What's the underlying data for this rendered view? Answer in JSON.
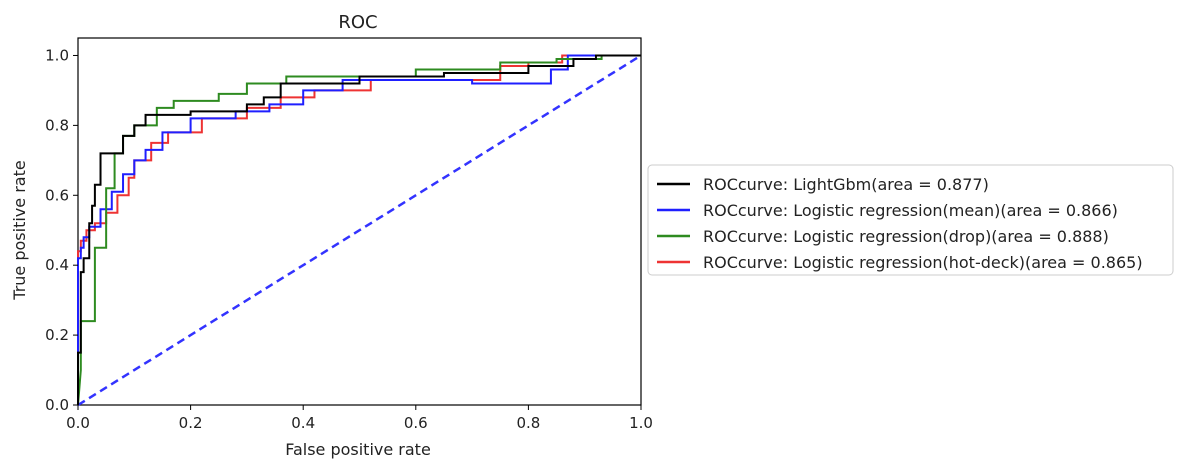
{
  "chart_data": {
    "type": "line",
    "title": "ROC",
    "xlabel": "False positive rate",
    "ylabel": "True positive rate",
    "xlim": [
      0,
      1
    ],
    "ylim": [
      0,
      1.05
    ],
    "x_ticks": [
      0.0,
      0.2,
      0.4,
      0.6,
      0.8,
      1.0
    ],
    "y_ticks": [
      0.0,
      0.2,
      0.4,
      0.6,
      0.8,
      1.0
    ],
    "grid": false,
    "legend_position": "right-outside",
    "series": [
      {
        "name": "ROCcurve: LightGbm(area = 0.877)",
        "color": "#000000",
        "style": "solid",
        "x": [
          0,
          0,
          0.005,
          0.005,
          0.01,
          0.01,
          0.02,
          0.02,
          0.025,
          0.025,
          0.03,
          0.03,
          0.04,
          0.04,
          0.08,
          0.08,
          0.1,
          0.1,
          0.12,
          0.12,
          0.2,
          0.2,
          0.3,
          0.3,
          0.33,
          0.33,
          0.36,
          0.36,
          0.5,
          0.5,
          0.65,
          0.65,
          0.8,
          0.8,
          0.88,
          0.88,
          0.92,
          0.92,
          1.0
        ],
        "y": [
          0,
          0.15,
          0.15,
          0.38,
          0.38,
          0.42,
          0.42,
          0.52,
          0.52,
          0.57,
          0.57,
          0.63,
          0.63,
          0.72,
          0.72,
          0.77,
          0.77,
          0.8,
          0.8,
          0.83,
          0.83,
          0.84,
          0.84,
          0.86,
          0.86,
          0.88,
          0.88,
          0.92,
          0.92,
          0.94,
          0.94,
          0.95,
          0.95,
          0.97,
          0.97,
          0.99,
          0.99,
          1.0,
          1.0
        ]
      },
      {
        "name": "ROCcurve: Logistic regression(mean)(area = 0.866)",
        "color": "#1f1fff",
        "style": "solid",
        "x": [
          0,
          0,
          0.005,
          0.005,
          0.01,
          0.01,
          0.02,
          0.02,
          0.04,
          0.04,
          0.06,
          0.06,
          0.08,
          0.08,
          0.1,
          0.1,
          0.12,
          0.12,
          0.15,
          0.15,
          0.2,
          0.2,
          0.28,
          0.28,
          0.34,
          0.34,
          0.4,
          0.4,
          0.47,
          0.47,
          0.7,
          0.7,
          0.84,
          0.84,
          0.87,
          0.87,
          1.0
        ],
        "y": [
          0,
          0.42,
          0.42,
          0.45,
          0.45,
          0.48,
          0.48,
          0.51,
          0.51,
          0.56,
          0.56,
          0.61,
          0.61,
          0.66,
          0.66,
          0.7,
          0.7,
          0.73,
          0.73,
          0.78,
          0.78,
          0.82,
          0.82,
          0.84,
          0.84,
          0.86,
          0.86,
          0.9,
          0.9,
          0.93,
          0.93,
          0.92,
          0.92,
          0.96,
          0.96,
          1.0,
          1.0
        ]
      },
      {
        "name": "ROCcurve: Logistic regression(drop)(area = 0.888)",
        "color": "#2e8b20",
        "style": "solid",
        "x": [
          0,
          0.005,
          0.005,
          0.01,
          0.01,
          0.03,
          0.03,
          0.05,
          0.05,
          0.065,
          0.065,
          0.08,
          0.08,
          0.1,
          0.1,
          0.14,
          0.14,
          0.17,
          0.17,
          0.25,
          0.25,
          0.3,
          0.3,
          0.37,
          0.37,
          0.6,
          0.6,
          0.75,
          0.75,
          0.85,
          0.85,
          0.93,
          0.93,
          1.0
        ],
        "y": [
          0,
          0.1,
          0.24,
          0.24,
          0.24,
          0.24,
          0.45,
          0.45,
          0.62,
          0.62,
          0.72,
          0.72,
          0.77,
          0.77,
          0.8,
          0.8,
          0.85,
          0.85,
          0.87,
          0.87,
          0.89,
          0.89,
          0.92,
          0.92,
          0.94,
          0.94,
          0.96,
          0.96,
          0.98,
          0.98,
          0.99,
          0.99,
          1.0,
          1.0
        ]
      },
      {
        "name": "ROCcurve: Logistic regression(hot-deck)(area = 0.865)",
        "color": "#ee3333",
        "style": "solid",
        "x": [
          0,
          0,
          0.005,
          0.005,
          0.015,
          0.015,
          0.03,
          0.03,
          0.05,
          0.05,
          0.07,
          0.07,
          0.09,
          0.09,
          0.1,
          0.1,
          0.13,
          0.13,
          0.16,
          0.16,
          0.22,
          0.22,
          0.3,
          0.3,
          0.36,
          0.36,
          0.42,
          0.42,
          0.52,
          0.52,
          0.75,
          0.75,
          0.8,
          0.8,
          0.86,
          0.86,
          1.0
        ],
        "y": [
          0,
          0.44,
          0.44,
          0.47,
          0.47,
          0.5,
          0.5,
          0.52,
          0.52,
          0.55,
          0.55,
          0.6,
          0.6,
          0.65,
          0.65,
          0.7,
          0.7,
          0.75,
          0.75,
          0.78,
          0.78,
          0.82,
          0.82,
          0.85,
          0.85,
          0.88,
          0.88,
          0.9,
          0.9,
          0.93,
          0.93,
          0.97,
          0.97,
          0.98,
          0.98,
          1.0,
          1.0
        ]
      }
    ],
    "reference_line": {
      "x": [
        0,
        1
      ],
      "y": [
        0,
        1
      ],
      "color": "#3333ff",
      "style": "dashed"
    }
  }
}
